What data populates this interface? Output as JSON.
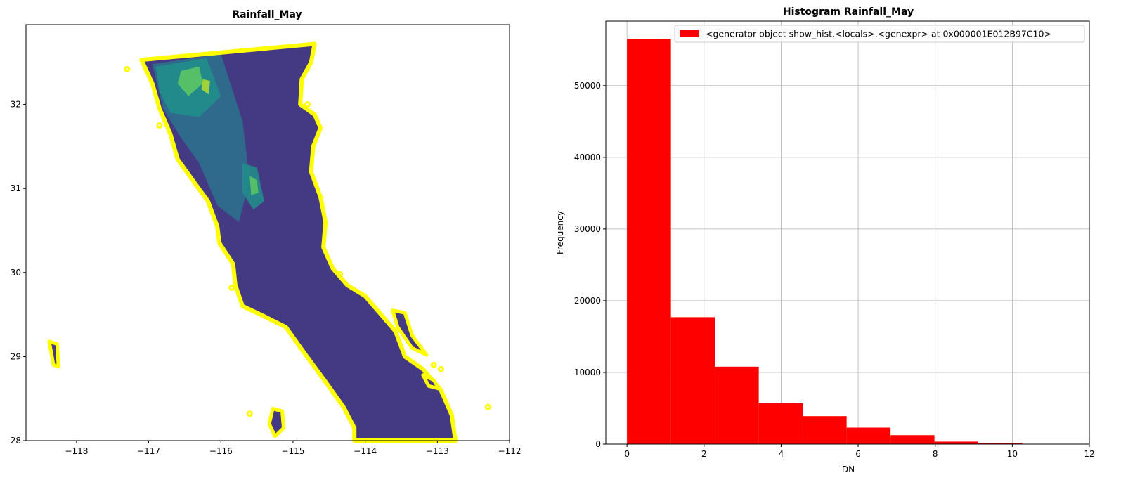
{
  "chart_data": [
    {
      "type": "map",
      "title": "Rainfall_May",
      "xlim": [
        -118.7,
        -112
      ],
      "ylim": [
        28,
        32.95
      ],
      "xticks": [
        -118,
        -117,
        -116,
        -115,
        -114,
        -113,
        -112
      ],
      "yticks": [
        28,
        29,
        30,
        31,
        32
      ],
      "xtick_labels": [
        "−118",
        "−117",
        "−116",
        "−115",
        "−114",
        "−113",
        "−112"
      ],
      "ytick_labels": [
        "28",
        "29",
        "30",
        "31",
        "32"
      ],
      "colors": {
        "base": "#443a83",
        "low": "#3b528b",
        "mid": "#2c728e",
        "high": "#21918c",
        "peak": "#5ec962",
        "max": "#b5de2b",
        "boundary": "#ffff00"
      },
      "boundary": [
        [
          -117.1,
          32.53
        ],
        [
          -114.7,
          32.72
        ],
        [
          -114.75,
          32.5
        ],
        [
          -114.88,
          32.3
        ],
        [
          -114.9,
          32.0
        ],
        [
          -114.7,
          31.88
        ],
        [
          -114.62,
          31.72
        ],
        [
          -114.72,
          31.5
        ],
        [
          -114.75,
          31.2
        ],
        [
          -114.62,
          30.9
        ],
        [
          -114.55,
          30.6
        ],
        [
          -114.58,
          30.3
        ],
        [
          -114.45,
          30.05
        ],
        [
          -114.25,
          29.85
        ],
        [
          -114.0,
          29.72
        ],
        [
          -113.78,
          29.5
        ],
        [
          -113.58,
          29.3
        ],
        [
          -113.45,
          29.0
        ],
        [
          -113.2,
          28.85
        ],
        [
          -112.95,
          28.6
        ],
        [
          -112.8,
          28.3
        ],
        [
          -112.75,
          28.0
        ],
        [
          -114.15,
          28.0
        ],
        [
          -114.15,
          28.15
        ],
        [
          -114.3,
          28.4
        ],
        [
          -114.55,
          28.7
        ],
        [
          -114.85,
          29.05
        ],
        [
          -115.1,
          29.35
        ],
        [
          -115.45,
          29.5
        ],
        [
          -115.7,
          29.6
        ],
        [
          -115.8,
          29.85
        ],
        [
          -115.83,
          30.1
        ],
        [
          -116.02,
          30.35
        ],
        [
          -116.05,
          30.55
        ],
        [
          -116.18,
          30.85
        ],
        [
          -116.35,
          31.05
        ],
        [
          -116.6,
          31.35
        ],
        [
          -116.7,
          31.65
        ],
        [
          -116.85,
          31.95
        ],
        [
          -116.95,
          32.25
        ]
      ],
      "islands": [
        [
          [
            -113.62,
            29.55
          ],
          [
            -113.45,
            29.52
          ],
          [
            -113.35,
            29.25
          ],
          [
            -113.15,
            29.02
          ],
          [
            -113.35,
            29.1
          ],
          [
            -113.55,
            29.35
          ]
        ],
        [
          [
            -118.38,
            29.18
          ],
          [
            -118.27,
            29.15
          ],
          [
            -118.25,
            28.88
          ],
          [
            -118.32,
            28.9
          ],
          [
            -118.35,
            29.05
          ]
        ],
        [
          [
            -115.28,
            28.38
          ],
          [
            -115.15,
            28.35
          ],
          [
            -115.13,
            28.15
          ],
          [
            -115.25,
            28.05
          ],
          [
            -115.33,
            28.2
          ]
        ],
        [
          [
            -113.2,
            28.78
          ],
          [
            -113.05,
            28.72
          ],
          [
            -112.98,
            28.62
          ],
          [
            -113.12,
            28.65
          ]
        ]
      ],
      "islets": [
        [
          -117.3,
          32.42
        ],
        [
          -115.6,
          28.32
        ],
        [
          -112.3,
          28.4
        ],
        [
          -113.05,
          28.9
        ],
        [
          -114.35,
          29.98
        ],
        [
          -114.8,
          32.0
        ],
        [
          -116.85,
          31.75
        ],
        [
          -115.85,
          29.82
        ],
        [
          -112.95,
          28.85
        ]
      ],
      "highlands": [
        {
          "color": "mid",
          "poly": [
            [
              -116.95,
              32.48
            ],
            [
              -116.0,
              32.6
            ],
            [
              -115.7,
              31.8
            ],
            [
              -115.6,
              31.1
            ],
            [
              -115.75,
              30.6
            ],
            [
              -116.05,
              30.8
            ],
            [
              -116.3,
              31.3
            ],
            [
              -116.55,
              31.6
            ],
            [
              -116.8,
              31.95
            ]
          ]
        },
        {
          "color": "high",
          "poly": [
            [
              -116.9,
              32.45
            ],
            [
              -116.2,
              32.55
            ],
            [
              -116.0,
              32.1
            ],
            [
              -116.3,
              31.85
            ],
            [
              -116.7,
              31.9
            ],
            [
              -116.85,
              32.15
            ]
          ]
        },
        {
          "color": "high",
          "poly": [
            [
              -115.7,
              31.3
            ],
            [
              -115.5,
              31.25
            ],
            [
              -115.4,
              30.85
            ],
            [
              -115.55,
              30.75
            ],
            [
              -115.7,
              30.95
            ]
          ]
        },
        {
          "color": "peak",
          "poly": [
            [
              -116.55,
              32.4
            ],
            [
              -116.3,
              32.45
            ],
            [
              -116.25,
              32.25
            ],
            [
              -116.45,
              32.1
            ],
            [
              -116.6,
              32.25
            ]
          ]
        },
        {
          "color": "peak",
          "poly": [
            [
              -115.6,
              31.15
            ],
            [
              -115.5,
              31.1
            ],
            [
              -115.48,
              30.95
            ],
            [
              -115.58,
              30.92
            ]
          ]
        },
        {
          "color": "max",
          "poly": [
            [
              -116.25,
              32.3
            ],
            [
              -116.15,
              32.28
            ],
            [
              -116.17,
              32.12
            ],
            [
              -116.27,
              32.18
            ]
          ]
        }
      ]
    },
    {
      "type": "bar",
      "title": "Histogram Rainfall_May",
      "xlabel": "DN",
      "ylabel": "Frequency",
      "xlim": [
        -0.55,
        12
      ],
      "ylim": [
        0,
        59000
      ],
      "xticks": [
        0,
        2,
        4,
        6,
        8,
        10,
        12
      ],
      "yticks": [
        0,
        10000,
        20000,
        30000,
        40000,
        50000
      ],
      "xtick_labels": [
        "0",
        "2",
        "4",
        "6",
        "8",
        "10",
        "12"
      ],
      "ytick_labels": [
        "0",
        "10000",
        "20000",
        "30000",
        "40000",
        "50000"
      ],
      "grid": true,
      "bar_color": "#ff0000",
      "legend_label": "<generator object show_hist.<locals>.<genexpr> at 0x000001E012B97C10>",
      "legend_loc": "top-right",
      "bin_edges": [
        0,
        1.14,
        2.28,
        3.42,
        4.56,
        5.7,
        6.84,
        7.98,
        9.12,
        10.26,
        11.4
      ],
      "values": [
        56500,
        17700,
        10800,
        5700,
        3900,
        2300,
        1250,
        350,
        100,
        25
      ]
    }
  ]
}
